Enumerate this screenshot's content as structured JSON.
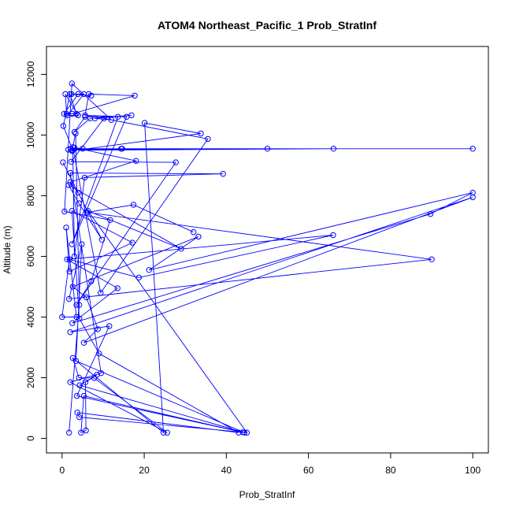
{
  "chart_data": {
    "type": "line",
    "title": "ATOM4 Northeast_Pacific_1 Prob_StratInf",
    "xlabel": "Prob_StratInf",
    "ylabel": "Altitude (m)",
    "xlim": [
      -3.8,
      103.8
    ],
    "ylim": [
      -480,
      12920
    ],
    "xticks": [
      0,
      20,
      40,
      60,
      80,
      100
    ],
    "yticks": [
      0,
      2000,
      4000,
      6000,
      8000,
      10000,
      12000
    ],
    "xtick_labels": [
      "0",
      "20",
      "40",
      "60",
      "80",
      "100"
    ],
    "ytick_labels": [
      "0",
      "2000",
      "4000",
      "6000",
      "8000",
      "10000",
      "12000"
    ],
    "grid": false,
    "legend": "none",
    "series_color": "#0000ff",
    "markers": "open-circle",
    "series": [
      {
        "name": "",
        "points": [
          [
            1.7,
            190
          ],
          [
            4.2,
            4400
          ],
          [
            3.3,
            10050
          ],
          [
            2.4,
            9480
          ],
          [
            33.8,
            10050
          ],
          [
            20.1,
            10400
          ],
          [
            24.7,
            190
          ],
          [
            2.6,
            2650
          ],
          [
            4.1,
            2000
          ],
          [
            7.8,
            1990
          ],
          [
            25.6,
            190
          ],
          [
            2.0,
            1850
          ],
          [
            9.5,
            2150
          ],
          [
            2.0,
            8750
          ],
          [
            39.2,
            8720
          ],
          [
            5.5,
            8600
          ],
          [
            3.0,
            6000
          ],
          [
            2.6,
            9600
          ],
          [
            9.4,
            4800
          ],
          [
            35.5,
            9870
          ],
          [
            10.2,
            10550
          ],
          [
            2.2,
            9120
          ],
          [
            27.7,
            9100
          ],
          [
            3.5,
            4400
          ],
          [
            7.1,
            5180
          ],
          [
            11.7,
            7200
          ],
          [
            0.6,
            7480
          ],
          [
            2.4,
            11700
          ],
          [
            12.0,
            10500
          ],
          [
            8.0,
            10550
          ],
          [
            16.9,
            10650
          ],
          [
            6.8,
            10550
          ],
          [
            3.0,
            10100
          ],
          [
            5.6,
            10600
          ],
          [
            13.6,
            10600
          ],
          [
            2.4,
            6400
          ],
          [
            15.7,
            10600
          ],
          [
            5.6,
            10650
          ],
          [
            6.5,
            11350
          ],
          [
            17.7,
            11300
          ],
          [
            2.5,
            10700
          ],
          [
            1.1,
            10700
          ],
          [
            0.8,
            11350
          ],
          [
            3.9,
            10650
          ],
          [
            1.3,
            10650
          ],
          [
            5.3,
            11350
          ],
          [
            2.3,
            11350
          ],
          [
            7.1,
            11300
          ],
          [
            3.9,
            11350
          ],
          [
            0.5,
            10700
          ],
          [
            3.5,
            10700
          ],
          [
            1.9,
            11350
          ],
          [
            0.3,
            10300
          ],
          [
            2.6,
            9500
          ],
          [
            14.4,
            9550
          ],
          [
            2.5,
            9500
          ],
          [
            66.1,
            9550
          ],
          [
            100.0,
            9550
          ],
          [
            2.1,
            9550
          ],
          [
            50.0,
            9550
          ],
          [
            1.5,
            9520
          ],
          [
            14.6,
            9550
          ],
          [
            5.0,
            9550
          ],
          [
            3.0,
            9580
          ],
          [
            18.0,
            9150
          ],
          [
            2.0,
            8450
          ],
          [
            3.9,
            8100
          ],
          [
            0.2,
            9100
          ],
          [
            9.7,
            6550
          ],
          [
            4.1,
            7750
          ],
          [
            1.6,
            8350
          ],
          [
            29.0,
            6250
          ],
          [
            6.3,
            7500
          ],
          [
            45.0,
            190
          ],
          [
            4.2,
            700
          ],
          [
            3.7,
            850
          ],
          [
            43.0,
            190
          ],
          [
            9.0,
            2800
          ],
          [
            4.2,
            3950
          ],
          [
            2.4,
            7500
          ],
          [
            17.1,
            6450
          ],
          [
            1.8,
            5500
          ],
          [
            1.0,
            6950
          ],
          [
            3.5,
            4000
          ],
          [
            0.0,
            4000
          ],
          [
            1.8,
            5900
          ],
          [
            18.7,
            5300
          ],
          [
            66.0,
            6700
          ],
          [
            1.2,
            5900
          ],
          [
            13.5,
            4950
          ],
          [
            2.5,
            3800
          ],
          [
            89.7,
            7400
          ],
          [
            100.0,
            8100
          ],
          [
            21.2,
            5550
          ],
          [
            33.2,
            6650
          ],
          [
            2.6,
            5000
          ],
          [
            5.9,
            4650
          ],
          [
            8.7,
            3600
          ],
          [
            5.3,
            3150
          ],
          [
            100.0,
            7950
          ],
          [
            2.0,
            3500
          ],
          [
            11.5,
            3700
          ],
          [
            3.6,
            1400
          ],
          [
            44.0,
            200
          ],
          [
            5.3,
            1400
          ],
          [
            4.6,
            190
          ],
          [
            5.8,
            260
          ],
          [
            5.7,
            1850
          ],
          [
            8.5,
            2100
          ],
          [
            4.3,
            1750
          ],
          [
            44.4,
            190
          ],
          [
            3.4,
            2550
          ],
          [
            4.8,
            6400
          ],
          [
            1.7,
            4600
          ],
          [
            90.0,
            5900
          ],
          [
            6.1,
            7450
          ],
          [
            17.4,
            7700
          ],
          [
            32.0,
            6800
          ]
        ]
      }
    ]
  }
}
